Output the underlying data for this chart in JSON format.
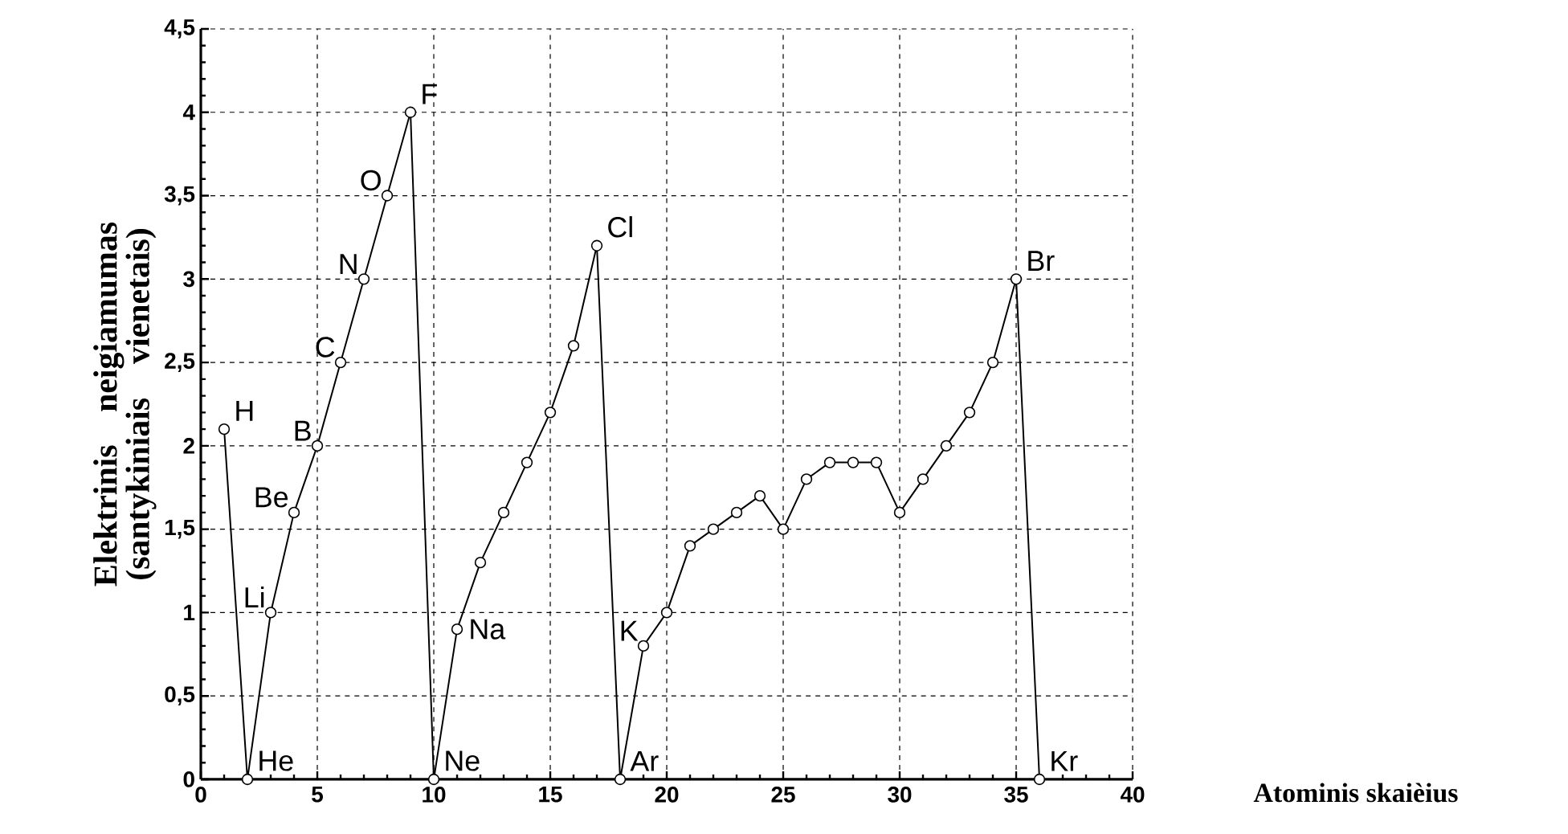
{
  "chart_data": {
    "type": "line",
    "xlabel": "Atominis skaièius",
    "ylabel": "Elektrinis neigiamumas (santykiniais vienetais)",
    "x": [
      1,
      2,
      3,
      4,
      5,
      6,
      7,
      8,
      9,
      10,
      11,
      12,
      13,
      14,
      15,
      16,
      17,
      18,
      19,
      20,
      21,
      22,
      23,
      24,
      25,
      26,
      27,
      28,
      29,
      30,
      31,
      32,
      33,
      34,
      35,
      36
    ],
    "series": [
      {
        "color": "#000000",
        "values": [
          2.1,
          0,
          1.0,
          1.6,
          2.0,
          2.5,
          3.0,
          3.5,
          4.0,
          0,
          0.9,
          1.3,
          1.6,
          1.9,
          2.2,
          2.6,
          3.2,
          0,
          0.8,
          1.0,
          1.4,
          1.5,
          1.6,
          1.7,
          1.5,
          1.8,
          1.9,
          1.9,
          1.9,
          1.6,
          1.8,
          2.0,
          2.2,
          2.5,
          3.0,
          0
        ]
      }
    ],
    "annotations": [
      {
        "text": "H",
        "x": 1,
        "y": 2.1
      },
      {
        "text": "He",
        "x": 2,
        "y": 0
      },
      {
        "text": "Li",
        "x": 3,
        "y": 1.0
      },
      {
        "text": "Be",
        "x": 4,
        "y": 1.6
      },
      {
        "text": "B",
        "x": 5,
        "y": 2.0
      },
      {
        "text": "C",
        "x": 6,
        "y": 2.5
      },
      {
        "text": "N",
        "x": 7,
        "y": 3.0
      },
      {
        "text": "O",
        "x": 8,
        "y": 3.5
      },
      {
        "text": "F",
        "x": 9,
        "y": 4.0
      },
      {
        "text": "Ne",
        "x": 10,
        "y": 0
      },
      {
        "text": "Na",
        "x": 11,
        "y": 0.9
      },
      {
        "text": "Cl",
        "x": 17,
        "y": 3.2
      },
      {
        "text": "Ar",
        "x": 18,
        "y": 0
      },
      {
        "text": "K",
        "x": 19,
        "y": 0.8
      },
      {
        "text": "Br",
        "x": 35,
        "y": 3.0
      },
      {
        "text": "Kr",
        "x": 36,
        "y": 0
      }
    ],
    "xlim": [
      0,
      40
    ],
    "xticks": [
      {
        "value": 0,
        "label": "0"
      },
      {
        "value": 5,
        "label": "5"
      },
      {
        "value": 10,
        "label": "10"
      },
      {
        "value": 15,
        "label": "15"
      },
      {
        "value": 20,
        "label": "20"
      },
      {
        "value": 25,
        "label": "25"
      },
      {
        "value": 30,
        "label": "30"
      },
      {
        "value": 35,
        "label": "35"
      },
      {
        "value": 40,
        "label": "40"
      }
    ],
    "ylim": [
      0,
      4.5
    ],
    "yticks": [
      {
        "value": 0,
        "label": "0"
      },
      {
        "value": 0.5,
        "label": "0,5"
      },
      {
        "value": 1,
        "label": "1"
      },
      {
        "value": 1.5,
        "label": "1,5"
      },
      {
        "value": 2,
        "label": "2"
      },
      {
        "value": 2.5,
        "label": "2,5"
      },
      {
        "value": 3,
        "label": "3"
      },
      {
        "value": 3.5,
        "label": "3,5"
      },
      {
        "value": 4,
        "label": "4"
      },
      {
        "value": 4.5,
        "label": "4,5"
      }
    ],
    "grid": true,
    "marker": "circle",
    "line_style": "solid"
  }
}
